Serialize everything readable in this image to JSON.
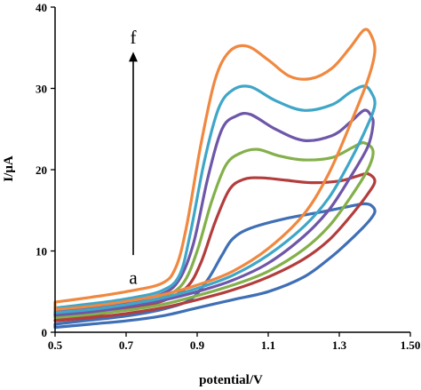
{
  "chart_data": {
    "type": "line",
    "title": "",
    "xlabel": "potential/V",
    "ylabel": "I/µA",
    "xlim": [
      0.5,
      1.5
    ],
    "ylim": [
      0,
      40
    ],
    "xticks": [
      0.5,
      0.7,
      0.9,
      1.1,
      1.3,
      1.5
    ],
    "xtick_labels": [
      "0.5",
      "0.7",
      "0.9",
      "1.1",
      "1.3",
      "1.50"
    ],
    "yticks": [
      0,
      10,
      20,
      30,
      40
    ],
    "ytick_labels": [
      "0",
      "10",
      "20",
      "30",
      "40"
    ],
    "grid": false,
    "legend": "none",
    "annotations": {
      "arrow_start_label": "a",
      "arrow_end_label": "f",
      "arrow_x": 0.72,
      "arrow_y_start": 9.5,
      "arrow_y_end": 34.5,
      "label_a_position": [
        0.72,
        7.5
      ],
      "label_f_position": [
        0.72,
        35.5
      ]
    },
    "series": [
      {
        "color": "#3f6fb5",
        "forward": [
          [
            0.5,
            1.0
          ],
          [
            0.6,
            1.5
          ],
          [
            0.7,
            2.0
          ],
          [
            0.8,
            2.8
          ],
          [
            0.88,
            4.0
          ],
          [
            0.93,
            6.5
          ],
          [
            0.97,
            9.5
          ],
          [
            1.0,
            11.5
          ],
          [
            1.05,
            12.8
          ],
          [
            1.15,
            14.0
          ],
          [
            1.25,
            14.8
          ],
          [
            1.33,
            15.5
          ],
          [
            1.37,
            15.8
          ],
          [
            1.39,
            15.6
          ],
          [
            1.4,
            14.8
          ]
        ],
        "reverse": [
          [
            1.4,
            14.8
          ],
          [
            1.38,
            13.5
          ],
          [
            1.33,
            11.3
          ],
          [
            1.27,
            9.0
          ],
          [
            1.2,
            6.8
          ],
          [
            1.1,
            5.0
          ],
          [
            1.0,
            4.0
          ],
          [
            0.9,
            3.0
          ],
          [
            0.8,
            2.0
          ],
          [
            0.7,
            1.4
          ],
          [
            0.6,
            1.0
          ],
          [
            0.5,
            0.6
          ]
        ]
      },
      {
        "color": "#b33d3d",
        "forward": [
          [
            0.5,
            1.5
          ],
          [
            0.6,
            2.1
          ],
          [
            0.7,
            2.8
          ],
          [
            0.8,
            3.8
          ],
          [
            0.87,
            5.5
          ],
          [
            0.91,
            8.5
          ],
          [
            0.95,
            13.5
          ],
          [
            0.99,
            17.5
          ],
          [
            1.03,
            18.8
          ],
          [
            1.08,
            19.0
          ],
          [
            1.15,
            18.7
          ],
          [
            1.22,
            18.4
          ],
          [
            1.3,
            18.6
          ],
          [
            1.35,
            19.2
          ],
          [
            1.38,
            19.5
          ],
          [
            1.4,
            18.6
          ]
        ],
        "reverse": [
          [
            1.4,
            18.6
          ],
          [
            1.38,
            17.0
          ],
          [
            1.33,
            14.2
          ],
          [
            1.27,
            11.3
          ],
          [
            1.2,
            9.0
          ],
          [
            1.1,
            6.8
          ],
          [
            1.0,
            5.2
          ],
          [
            0.9,
            4.0
          ],
          [
            0.8,
            3.0
          ],
          [
            0.7,
            2.3
          ],
          [
            0.6,
            1.8
          ],
          [
            0.5,
            1.4
          ]
        ]
      },
      {
        "color": "#83b04a",
        "forward": [
          [
            0.5,
            2.0
          ],
          [
            0.6,
            2.6
          ],
          [
            0.7,
            3.3
          ],
          [
            0.8,
            4.3
          ],
          [
            0.86,
            6.0
          ],
          [
            0.9,
            10.0
          ],
          [
            0.94,
            16.0
          ],
          [
            0.98,
            20.5
          ],
          [
            1.02,
            22.0
          ],
          [
            1.07,
            22.5
          ],
          [
            1.13,
            21.7
          ],
          [
            1.2,
            21.2
          ],
          [
            1.28,
            21.5
          ],
          [
            1.34,
            22.8
          ],
          [
            1.37,
            23.3
          ],
          [
            1.395,
            22.3
          ]
        ],
        "reverse": [
          [
            1.395,
            22.3
          ],
          [
            1.38,
            20.0
          ],
          [
            1.33,
            16.5
          ],
          [
            1.27,
            13.0
          ],
          [
            1.2,
            10.2
          ],
          [
            1.1,
            7.5
          ],
          [
            1.0,
            5.8
          ],
          [
            0.9,
            4.5
          ],
          [
            0.8,
            3.4
          ],
          [
            0.7,
            2.7
          ],
          [
            0.6,
            2.2
          ],
          [
            0.5,
            1.8
          ]
        ]
      },
      {
        "color": "#6e56a8",
        "forward": [
          [
            0.5,
            2.5
          ],
          [
            0.6,
            3.0
          ],
          [
            0.7,
            3.7
          ],
          [
            0.8,
            4.7
          ],
          [
            0.85,
            6.5
          ],
          [
            0.89,
            11.0
          ],
          [
            0.93,
            19.0
          ],
          [
            0.97,
            25.0
          ],
          [
            1.01,
            26.6
          ],
          [
            1.05,
            26.8
          ],
          [
            1.12,
            25.0
          ],
          [
            1.2,
            23.6
          ],
          [
            1.28,
            24.2
          ],
          [
            1.33,
            25.8
          ],
          [
            1.37,
            27.3
          ],
          [
            1.39,
            26.6
          ],
          [
            1.395,
            25.5
          ]
        ],
        "reverse": [
          [
            1.395,
            25.5
          ],
          [
            1.38,
            22.8
          ],
          [
            1.33,
            19.0
          ],
          [
            1.27,
            15.0
          ],
          [
            1.2,
            11.8
          ],
          [
            1.1,
            8.5
          ],
          [
            1.0,
            6.4
          ],
          [
            0.9,
            5.0
          ],
          [
            0.8,
            3.9
          ],
          [
            0.7,
            3.1
          ],
          [
            0.6,
            2.5
          ],
          [
            0.5,
            2.1
          ]
        ]
      },
      {
        "color": "#3fa6c8",
        "forward": [
          [
            0.5,
            3.0
          ],
          [
            0.6,
            3.5
          ],
          [
            0.7,
            4.1
          ],
          [
            0.8,
            5.1
          ],
          [
            0.85,
            7.0
          ],
          [
            0.88,
            12.0
          ],
          [
            0.92,
            21.0
          ],
          [
            0.96,
            27.5
          ],
          [
            1.0,
            29.8
          ],
          [
            1.05,
            30.2
          ],
          [
            1.12,
            28.5
          ],
          [
            1.2,
            27.3
          ],
          [
            1.28,
            28.0
          ],
          [
            1.33,
            29.5
          ],
          [
            1.37,
            30.3
          ],
          [
            1.39,
            29.5
          ],
          [
            1.4,
            28.0
          ]
        ],
        "reverse": [
          [
            1.4,
            28.0
          ],
          [
            1.38,
            25.5
          ],
          [
            1.33,
            21.0
          ],
          [
            1.27,
            16.5
          ],
          [
            1.2,
            13.0
          ],
          [
            1.1,
            9.5
          ],
          [
            1.0,
            7.0
          ],
          [
            0.9,
            5.4
          ],
          [
            0.8,
            4.2
          ],
          [
            0.7,
            3.4
          ],
          [
            0.6,
            2.8
          ],
          [
            0.5,
            2.4
          ]
        ]
      },
      {
        "color": "#f0883f",
        "forward": [
          [
            0.5,
            3.7
          ],
          [
            0.6,
            4.3
          ],
          [
            0.7,
            5.0
          ],
          [
            0.8,
            6.0
          ],
          [
            0.84,
            8.0
          ],
          [
            0.87,
            13.0
          ],
          [
            0.91,
            23.0
          ],
          [
            0.95,
            31.0
          ],
          [
            0.99,
            34.5
          ],
          [
            1.04,
            35.2
          ],
          [
            1.1,
            33.5
          ],
          [
            1.16,
            31.5
          ],
          [
            1.22,
            31.2
          ],
          [
            1.28,
            32.5
          ],
          [
            1.33,
            35.0
          ],
          [
            1.37,
            37.2
          ],
          [
            1.39,
            36.5
          ],
          [
            1.4,
            34.5
          ]
        ],
        "reverse": [
          [
            1.4,
            34.5
          ],
          [
            1.38,
            31.0
          ],
          [
            1.33,
            25.5
          ],
          [
            1.27,
            19.5
          ],
          [
            1.2,
            14.5
          ],
          [
            1.1,
            10.3
          ],
          [
            1.0,
            7.5
          ],
          [
            0.9,
            5.8
          ],
          [
            0.8,
            4.6
          ],
          [
            0.7,
            3.8
          ],
          [
            0.6,
            3.2
          ],
          [
            0.5,
            2.8
          ]
        ]
      }
    ]
  }
}
